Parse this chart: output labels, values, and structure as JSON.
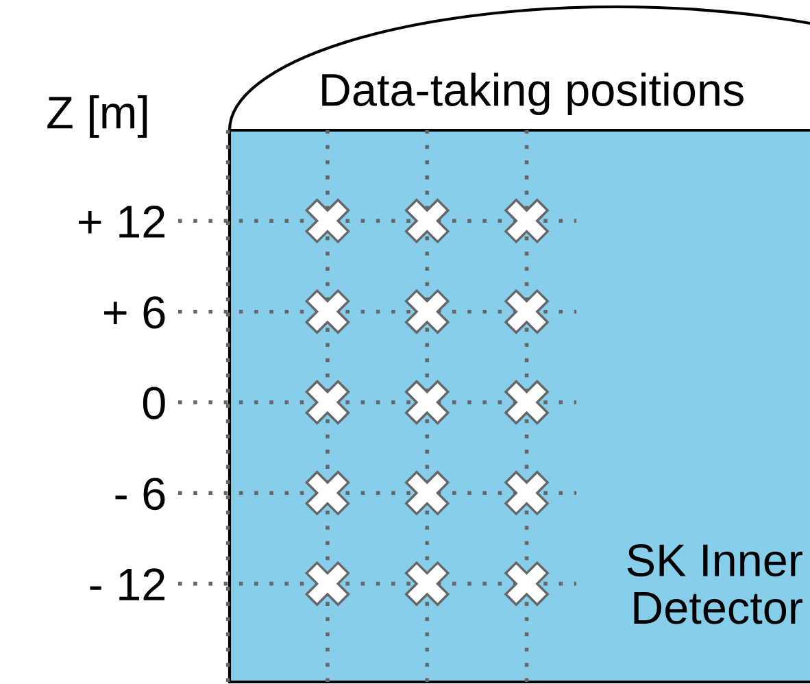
{
  "chart_data": {
    "type": "scatter",
    "title": "Data-taking positions",
    "ylabel": "Z [m]",
    "categories": [
      null,
      null,
      null,
      null
    ],
    "series": [
      {
        "color": "#ffffff",
        "values": [
          null,
          12,
          12,
          12
        ]
      },
      {
        "color": "#ffffff",
        "values": [
          null,
          6,
          6,
          6
        ]
      },
      {
        "color": "#ffffff",
        "values": [
          null,
          0,
          0,
          0
        ]
      },
      {
        "color": "#ffffff",
        "values": [
          null,
          -6,
          -6,
          -6
        ]
      },
      {
        "color": "#ffffff",
        "values": [
          null,
          -12,
          -12,
          -12
        ]
      }
    ],
    "ylim": [
      -18.5,
      18
    ],
    "yticks": [
      {
        "value": 12,
        "label": "+ 12"
      },
      {
        "value": 6,
        "label": "+ 6"
      },
      0,
      {
        "value": -6,
        "label": "- 6"
      },
      {
        "value": -12,
        "label": "- 12"
      }
    ],
    "tick_labels": "y",
    "grid": true,
    "marker": "cross",
    "legend": false,
    "annotations": [
      "SK Inner\nDetector"
    ]
  }
}
